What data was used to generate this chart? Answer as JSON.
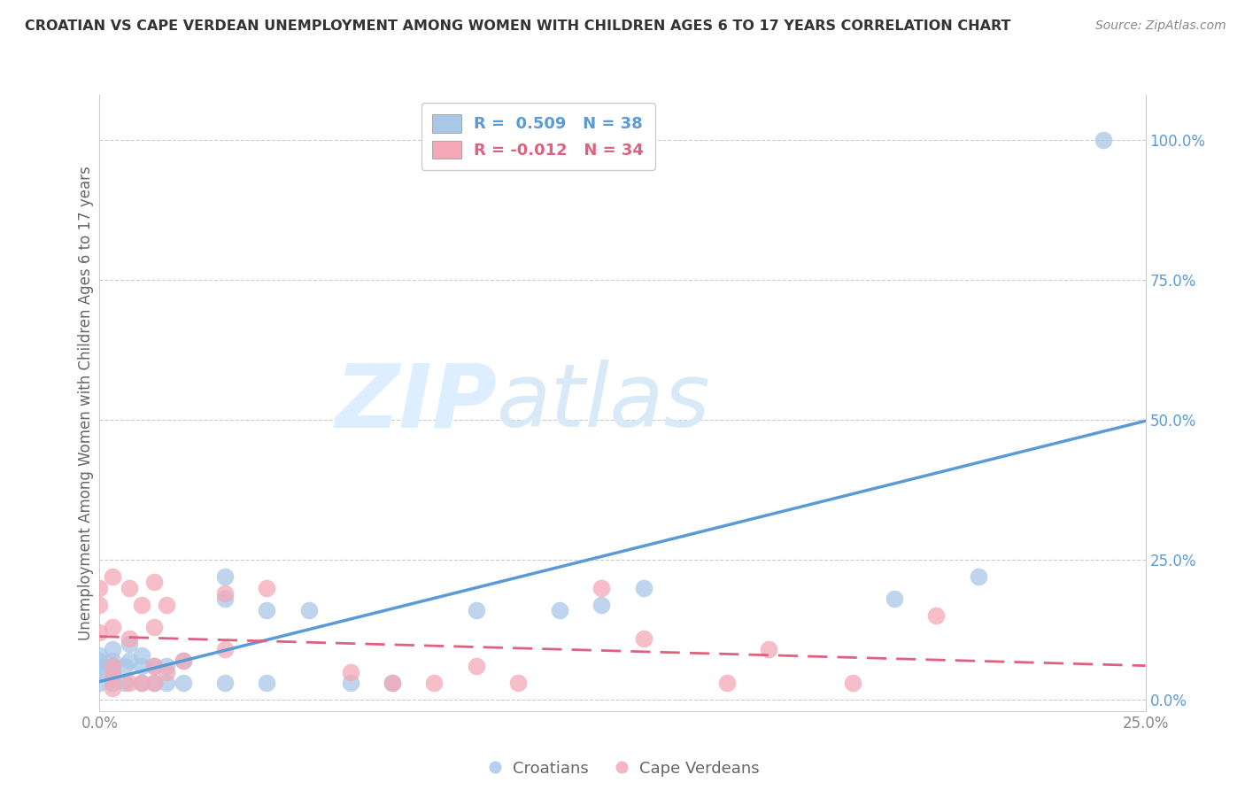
{
  "title": "CROATIAN VS CAPE VERDEAN UNEMPLOYMENT AMONG WOMEN WITH CHILDREN AGES 6 TO 17 YEARS CORRELATION CHART",
  "source": "Source: ZipAtlas.com",
  "ylabel": "Unemployment Among Women with Children Ages 6 to 17 years",
  "xlabel": "",
  "xlim": [
    0.0,
    0.25
  ],
  "ylim": [
    -0.02,
    1.08
  ],
  "xtick_positions": [
    0.0,
    0.05,
    0.1,
    0.15,
    0.2,
    0.25
  ],
  "xtick_labels": [
    "0.0%",
    "",
    "",
    "",
    "",
    "25.0%"
  ],
  "ytick_positions": [
    0.0,
    0.25,
    0.5,
    0.75,
    1.0
  ],
  "ytick_labels_right": [
    "0.0%",
    "25.0%",
    "50.0%",
    "75.0%",
    "100.0%"
  ],
  "legend_blue_r": "R =  0.509",
  "legend_blue_n": "N = 38",
  "legend_pink_r": "R = -0.012",
  "legend_pink_n": "N = 34",
  "blue_scatter_color": "#a8c8e8",
  "pink_scatter_color": "#f4a8b8",
  "blue_line_color": "#5b9bd5",
  "pink_line_color": "#e06080",
  "watermark_zip": "ZIP",
  "watermark_atlas": "atlas",
  "watermark_color": "#ddeeff",
  "background_color": "#ffffff",
  "grid_color": "#cccccc",
  "title_color": "#333333",
  "source_color": "#888888",
  "axis_label_color": "#666666",
  "tick_label_color": "#888888",
  "right_tick_color": "#5b9bd5",
  "croatian_x": [
    0.0,
    0.0,
    0.0,
    0.0,
    0.0,
    0.003,
    0.003,
    0.003,
    0.003,
    0.003,
    0.006,
    0.006,
    0.007,
    0.007,
    0.01,
    0.01,
    0.01,
    0.013,
    0.013,
    0.016,
    0.016,
    0.02,
    0.02,
    0.03,
    0.03,
    0.03,
    0.04,
    0.04,
    0.05,
    0.06,
    0.07,
    0.09,
    0.11,
    0.12,
    0.13,
    0.19,
    0.21,
    0.24
  ],
  "croatian_y": [
    0.03,
    0.05,
    0.06,
    0.07,
    0.08,
    0.03,
    0.05,
    0.06,
    0.07,
    0.09,
    0.03,
    0.06,
    0.07,
    0.1,
    0.03,
    0.06,
    0.08,
    0.03,
    0.06,
    0.03,
    0.06,
    0.03,
    0.07,
    0.03,
    0.18,
    0.22,
    0.03,
    0.16,
    0.16,
    0.03,
    0.03,
    0.16,
    0.16,
    0.17,
    0.2,
    0.18,
    0.22,
    1.0
  ],
  "capeverdean_x": [
    0.0,
    0.0,
    0.0,
    0.003,
    0.003,
    0.003,
    0.003,
    0.003,
    0.007,
    0.007,
    0.007,
    0.01,
    0.01,
    0.013,
    0.013,
    0.013,
    0.013,
    0.016,
    0.016,
    0.02,
    0.03,
    0.03,
    0.04,
    0.06,
    0.07,
    0.08,
    0.09,
    0.1,
    0.12,
    0.13,
    0.15,
    0.16,
    0.18,
    0.2
  ],
  "capeverdean_y": [
    0.12,
    0.17,
    0.2,
    0.02,
    0.04,
    0.06,
    0.13,
    0.22,
    0.03,
    0.11,
    0.2,
    0.03,
    0.17,
    0.03,
    0.06,
    0.13,
    0.21,
    0.05,
    0.17,
    0.07,
    0.09,
    0.19,
    0.2,
    0.05,
    0.03,
    0.03,
    0.06,
    0.03,
    0.2,
    0.11,
    0.03,
    0.09,
    0.03,
    0.15
  ]
}
